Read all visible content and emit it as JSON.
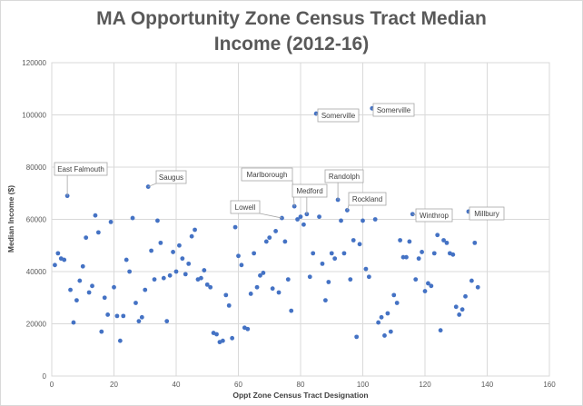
{
  "chart_data": {
    "type": "scatter",
    "title_line1": "MA Opportunity Zone Census Tract Median",
    "title_line2": "Income (2012-16)",
    "xlabel": "Oppt Zone Census Tract Designation",
    "ylabel": "Median Income ($)",
    "xlim": [
      0,
      160
    ],
    "ylim": [
      0,
      120000
    ],
    "xticks": [
      "0",
      "20",
      "40",
      "60",
      "80",
      "100",
      "120",
      "140",
      "160"
    ],
    "yticks": [
      "0",
      "20000",
      "40000",
      "60000",
      "80000",
      "100000",
      "120000"
    ],
    "grid": true,
    "marker_color": "#4472c4",
    "points": [
      [
        1,
        42500
      ],
      [
        2,
        47000
      ],
      [
        3,
        45000
      ],
      [
        4,
        44500
      ],
      [
        5,
        69000
      ],
      [
        6,
        33000
      ],
      [
        7,
        20500
      ],
      [
        8,
        29000
      ],
      [
        9,
        36500
      ],
      [
        10,
        42000
      ],
      [
        11,
        53000
      ],
      [
        12,
        32000
      ],
      [
        13,
        34500
      ],
      [
        14,
        61500
      ],
      [
        15,
        55000
      ],
      [
        16,
        17000
      ],
      [
        17,
        30000
      ],
      [
        18,
        23500
      ],
      [
        19,
        59000
      ],
      [
        20,
        34000
      ],
      [
        21,
        23000
      ],
      [
        22,
        13500
      ],
      [
        23,
        23000
      ],
      [
        24,
        44500
      ],
      [
        25,
        40000
      ],
      [
        26,
        60500
      ],
      [
        27,
        28000
      ],
      [
        28,
        21000
      ],
      [
        29,
        22500
      ],
      [
        30,
        33000
      ],
      [
        31,
        72500
      ],
      [
        32,
        48000
      ],
      [
        33,
        37000
      ],
      [
        34,
        59500
      ],
      [
        35,
        51000
      ],
      [
        36,
        37500
      ],
      [
        37,
        21000
      ],
      [
        38,
        38500
      ],
      [
        39,
        47500
      ],
      [
        40,
        40000
      ],
      [
        41,
        50000
      ],
      [
        42,
        45000
      ],
      [
        43,
        39000
      ],
      [
        44,
        43000
      ],
      [
        45,
        53500
      ],
      [
        46,
        56000
      ],
      [
        47,
        37000
      ],
      [
        48,
        37500
      ],
      [
        49,
        40500
      ],
      [
        50,
        35000
      ],
      [
        51,
        34000
      ],
      [
        52,
        16500
      ],
      [
        53,
        16000
      ],
      [
        54,
        13000
      ],
      [
        55,
        13500
      ],
      [
        56,
        31000
      ],
      [
        57,
        27000
      ],
      [
        58,
        14500
      ],
      [
        59,
        57000
      ],
      [
        60,
        46000
      ],
      [
        61,
        42500
      ],
      [
        62,
        18500
      ],
      [
        63,
        18000
      ],
      [
        64,
        31500
      ],
      [
        65,
        47000
      ],
      [
        66,
        34000
      ],
      [
        67,
        38500
      ],
      [
        68,
        39500
      ],
      [
        69,
        51500
      ],
      [
        70,
        53000
      ],
      [
        71,
        33500
      ],
      [
        72,
        55500
      ],
      [
        73,
        32000
      ],
      [
        74,
        60500
      ],
      [
        75,
        51500
      ],
      [
        76,
        37000
      ],
      [
        77,
        25000
      ],
      [
        78,
        65000
      ],
      [
        79,
        60000
      ],
      [
        80,
        61000
      ],
      [
        81,
        58000
      ],
      [
        82,
        62000
      ],
      [
        83,
        38000
      ],
      [
        84,
        47000
      ],
      [
        85,
        100500
      ],
      [
        86,
        61000
      ],
      [
        87,
        43000
      ],
      [
        88,
        29000
      ],
      [
        89,
        36000
      ],
      [
        90,
        47000
      ],
      [
        91,
        45000
      ],
      [
        92,
        67500
      ],
      [
        93,
        59500
      ],
      [
        94,
        47000
      ],
      [
        95,
        63500
      ],
      [
        96,
        37000
      ],
      [
        97,
        52000
      ],
      [
        98,
        15000
      ],
      [
        99,
        50500
      ],
      [
        100,
        59500
      ],
      [
        101,
        41000
      ],
      [
        102,
        38000
      ],
      [
        103,
        102500
      ],
      [
        104,
        60000
      ],
      [
        105,
        20500
      ],
      [
        106,
        22500
      ],
      [
        107,
        15500
      ],
      [
        108,
        24000
      ],
      [
        109,
        17000
      ],
      [
        110,
        31000
      ],
      [
        111,
        28000
      ],
      [
        112,
        52000
      ],
      [
        113,
        45500
      ],
      [
        114,
        45500
      ],
      [
        115,
        51500
      ],
      [
        116,
        62000
      ],
      [
        117,
        37000
      ],
      [
        118,
        45000
      ],
      [
        119,
        47500
      ],
      [
        120,
        32500
      ],
      [
        121,
        35500
      ],
      [
        122,
        34500
      ],
      [
        123,
        47000
      ],
      [
        124,
        54000
      ],
      [
        125,
        17500
      ],
      [
        126,
        52000
      ],
      [
        127,
        51000
      ],
      [
        128,
        47000
      ],
      [
        129,
        46500
      ],
      [
        130,
        26500
      ],
      [
        131,
        23500
      ],
      [
        132,
        25500
      ],
      [
        133,
        30500
      ],
      [
        134,
        63000
      ],
      [
        135,
        36500
      ],
      [
        136,
        51000
      ],
      [
        137,
        34000
      ]
    ],
    "annotations": [
      {
        "label": "East Falmouth",
        "x": 5,
        "y": 69000
      },
      {
        "label": "Saugus",
        "x": 31,
        "y": 72500
      },
      {
        "label": "Marlborough",
        "x": 78,
        "y": 65000
      },
      {
        "label": "Medford",
        "x": 82,
        "y": 62000
      },
      {
        "label": "Lowell",
        "x": 74,
        "y": 60500
      },
      {
        "label": "Somerville",
        "x": 85,
        "y": 100500
      },
      {
        "label": "Somerville",
        "x": 103,
        "y": 102500
      },
      {
        "label": "Randolph",
        "x": 92,
        "y": 67500
      },
      {
        "label": "Rockland",
        "x": 95,
        "y": 63500
      },
      {
        "label": "Winthrop",
        "x": 116,
        "y": 62000
      },
      {
        "label": "Millbury",
        "x": 134,
        "y": 63000
      }
    ]
  }
}
